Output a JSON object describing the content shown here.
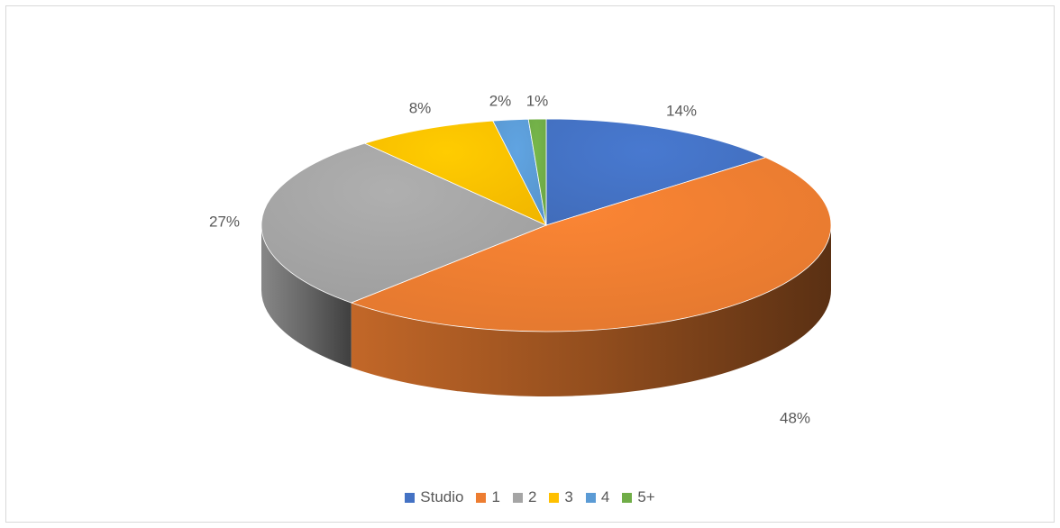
{
  "chart_data": {
    "type": "pie",
    "title": "",
    "style": "3d",
    "legend_position": "bottom",
    "categories": [
      "Studio",
      "1",
      "2",
      "3",
      "4",
      "5+"
    ],
    "values": [
      14,
      48,
      27,
      8,
      2,
      1
    ],
    "labels": [
      "14%",
      "48%",
      "27%",
      "8%",
      "2%",
      "1%"
    ],
    "colors": [
      "#4472C4",
      "#ED7D31",
      "#A5A5A5",
      "#FFC000",
      "#5B9BD5",
      "#70AD47"
    ],
    "legend": [
      {
        "label": "Studio",
        "color": "#4472C4"
      },
      {
        "label": "1",
        "color": "#ED7D31"
      },
      {
        "label": "2",
        "color": "#A5A5A5"
      },
      {
        "label": "3",
        "color": "#FFC000"
      },
      {
        "label": "4",
        "color": "#5B9BD5"
      },
      {
        "label": "5+",
        "color": "#70AD47"
      }
    ]
  }
}
